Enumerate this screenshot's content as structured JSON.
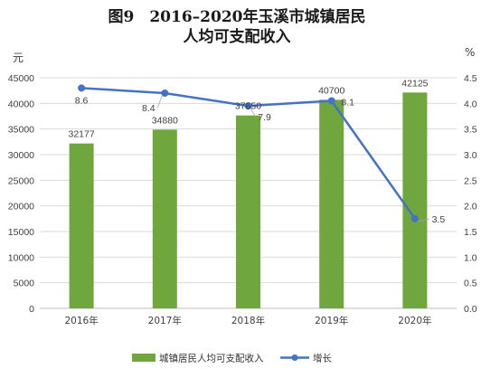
{
  "chart_data": {
    "type": "bar+line",
    "title_line1": "图9　2016–2020年玉溪市城镇居民",
    "title_line2": "人均可支配收入",
    "y_left_unit": "元",
    "y_right_unit": "%",
    "y_left_range": [
      0,
      45000
    ],
    "y_left_step": 5000,
    "y_right_range": [
      0.0,
      9.0
    ],
    "y_right_step": 0.5,
    "categories": [
      "2016年",
      "2017年",
      "2018年",
      "2019年",
      "2020年"
    ],
    "series": [
      {
        "name": "城镇居民人均可支配收入",
        "type": "bar",
        "axis": "left",
        "values": [
          32177,
          34880,
          37650,
          40700,
          42125
        ],
        "labels": [
          "32177",
          "34880",
          "37650",
          "40700",
          "42125"
        ],
        "color": "#6fa63e"
      },
      {
        "name": "增长",
        "type": "line",
        "axis": "right",
        "values": [
          8.6,
          8.4,
          7.9,
          8.1,
          3.5
        ],
        "labels": [
          "8.6",
          "8.4",
          "7.9",
          "8.1",
          "3.5"
        ],
        "color": "#4472c4"
      }
    ],
    "grid": true,
    "legend_position": "bottom"
  }
}
